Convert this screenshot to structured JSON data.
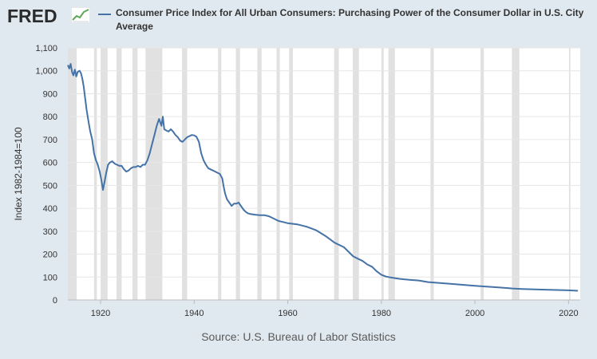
{
  "header": {
    "logo_text": "FRED",
    "logo_icon": "line-graph-icon"
  },
  "chart_data": {
    "type": "line",
    "title": "Consumer Price Index for All Urban Consumers: Purchasing Power of the Consumer Dollar in U.S. City Average",
    "ylabel": "Index 1982-1984=100",
    "xlabel": "",
    "xlim": [
      1913,
      2022.5
    ],
    "ylim": [
      0,
      1100
    ],
    "x_ticks": [
      1920,
      1940,
      1960,
      1980,
      2000,
      2020
    ],
    "y_ticks": [
      0,
      100,
      200,
      300,
      400,
      500,
      600,
      700,
      800,
      900,
      1000,
      1100
    ],
    "y_tick_labels": [
      "0",
      "100",
      "200",
      "300",
      "400",
      "500",
      "600",
      "700",
      "800",
      "900",
      "1,000",
      "1,100"
    ],
    "grid": true,
    "colors": {
      "line": "#4572a7",
      "recession": "#e1e1e1",
      "grid": "#e6e6e6"
    },
    "recessions": [
      [
        1913.0,
        1914.9
      ],
      [
        1918.6,
        1919.2
      ],
      [
        1920.0,
        1921.5
      ],
      [
        1923.4,
        1924.5
      ],
      [
        1926.8,
        1927.9
      ],
      [
        1929.6,
        1933.2
      ],
      [
        1937.4,
        1938.5
      ],
      [
        1945.1,
        1945.8
      ],
      [
        1948.9,
        1949.8
      ],
      [
        1953.5,
        1954.4
      ],
      [
        1957.6,
        1958.3
      ],
      [
        1960.3,
        1961.1
      ],
      [
        1969.9,
        1970.9
      ],
      [
        1973.9,
        1975.2
      ],
      [
        1980.0,
        1980.5
      ],
      [
        1981.5,
        1982.9
      ],
      [
        1990.5,
        1991.2
      ],
      [
        2001.2,
        2001.9
      ],
      [
        2007.9,
        2009.5
      ],
      [
        2020.1,
        2020.4
      ]
    ],
    "series": [
      {
        "name": "Consumer Price Index for All Urban Consumers: Purchasing Power of the Consumer Dollar in U.S. City Average",
        "x": [
          1913.0,
          1913.3,
          1913.6,
          1913.9,
          1914.2,
          1914.5,
          1914.8,
          1915.1,
          1915.5,
          1915.8,
          1916.1,
          1916.4,
          1916.7,
          1917.0,
          1917.4,
          1917.8,
          1918.2,
          1918.6,
          1919.0,
          1919.4,
          1919.8,
          1920.2,
          1920.5,
          1920.8,
          1921.2,
          1921.6,
          1922.0,
          1922.5,
          1923.0,
          1923.5,
          1924.0,
          1924.5,
          1925.0,
          1925.5,
          1926.0,
          1926.5,
          1927.0,
          1927.5,
          1928.0,
          1928.5,
          1929.0,
          1929.5,
          1930.0,
          1930.5,
          1931.0,
          1931.5,
          1932.0,
          1932.5,
          1933.0,
          1933.3,
          1933.6,
          1934.0,
          1934.5,
          1935.0,
          1935.5,
          1936.0,
          1936.5,
          1937.0,
          1937.5,
          1938.0,
          1938.5,
          1939.0,
          1939.5,
          1940.0,
          1940.5,
          1941.0,
          1941.5,
          1942.0,
          1942.5,
          1943.0,
          1943.5,
          1944.0,
          1944.5,
          1945.0,
          1945.5,
          1946.0,
          1946.3,
          1946.6,
          1947.0,
          1947.5,
          1948.0,
          1948.5,
          1949.0,
          1949.5,
          1950.0,
          1950.5,
          1951.0,
          1951.5,
          1952.0,
          1953.0,
          1954.0,
          1955.0,
          1956.0,
          1957.0,
          1958.0,
          1959.0,
          1960.0,
          1962.0,
          1964.0,
          1966.0,
          1968.0,
          1970.0,
          1972.0,
          1974.0,
          1975.0,
          1976.0,
          1977.0,
          1978.0,
          1979.0,
          1980.0,
          1981.0,
          1982.0,
          1983.0,
          1984.0,
          1986.0,
          1988.0,
          1990.0,
          1992.0,
          1995.0,
          2000.0,
          2005.0,
          2008.0,
          2010.0,
          2015.0,
          2020.0,
          2022.0
        ],
        "values": [
          1025,
          1010,
          1030,
          995,
          980,
          1005,
          975,
          995,
          1000,
          990,
          965,
          930,
          880,
          830,
          780,
          735,
          700,
          640,
          610,
          590,
          560,
          520,
          480,
          510,
          555,
          590,
          600,
          605,
          595,
          590,
          585,
          585,
          570,
          560,
          565,
          575,
          580,
          580,
          585,
          580,
          590,
          590,
          610,
          640,
          680,
          720,
          760,
          790,
          760,
          800,
          745,
          740,
          735,
          745,
          735,
          720,
          710,
          695,
          690,
          700,
          710,
          715,
          720,
          718,
          712,
          690,
          640,
          610,
          590,
          575,
          570,
          565,
          560,
          555,
          550,
          530,
          495,
          465,
          440,
          425,
          410,
          420,
          420,
          425,
          410,
          395,
          385,
          378,
          375,
          372,
          370,
          370,
          365,
          355,
          345,
          340,
          335,
          330,
          320,
          305,
          280,
          250,
          230,
          190,
          180,
          170,
          155,
          145,
          125,
          110,
          102,
          98,
          95,
          92,
          88,
          85,
          78,
          75,
          70,
          62,
          55,
          50,
          48,
          45,
          42,
          40
        ]
      }
    ]
  },
  "footer": {
    "source_text": "Source: U.S. Bureau of Labor Statistics"
  }
}
